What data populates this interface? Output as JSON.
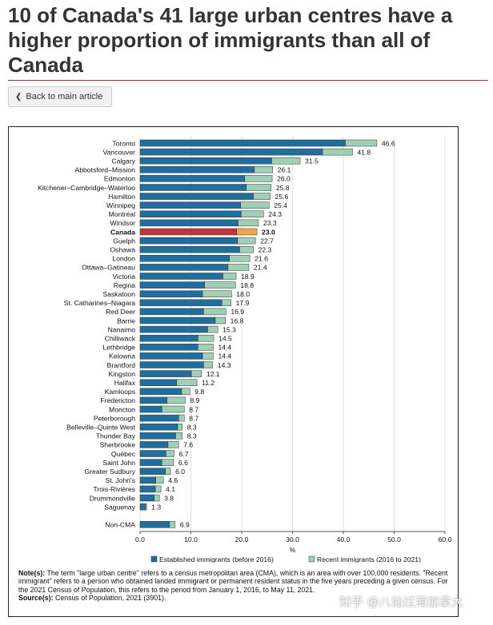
{
  "page": {
    "title": "10 of Canada's 41 large urban centres have a higher proportion of immigrants than all of Canada",
    "back_button": {
      "label": "Back to main article",
      "icon": "chevron-left-icon"
    },
    "watermark": "知乎 @八仙过海加拿大"
  },
  "notes": {
    "note_label": "Note(s):",
    "note_text": "The term \"large urban centre\" refers to a census metropolitan area (CMA), which is an area with over 100,000 residents. \"Recent immigrant\" refers to a person who obtained landed immigrant or permanent resident status in the five years preceding a given census. For the 2021 Census of Population, this refers to the period from January 1, 2016, to May 11, 2021.",
    "source_label": "Source(s):",
    "source_text": "Census of Population, 2021 (3901)."
  },
  "chart_data": {
    "type": "bar",
    "orientation": "horizontal",
    "stacked": true,
    "xlabel": "%",
    "xlim": [
      0,
      60
    ],
    "xticks": [
      "0.0",
      "10.0",
      "20.0",
      "30.0",
      "40.0",
      "50.0",
      "60.0"
    ],
    "grid": true,
    "legend_position": "bottom",
    "highlight_category": "Canada",
    "colors": {
      "established": "#1f6e9e",
      "recent": "#9fcfb4",
      "highlight_established": "#c0373b",
      "highlight_recent": "#f2a44a"
    },
    "series": [
      {
        "name": "Established immigrants (before 2016)"
      },
      {
        "name": "Recent immigrants (2016 to 2021)"
      }
    ],
    "categories": [
      "Toronto",
      "Vancouver",
      "Calgary",
      "Abbotsford–Mission",
      "Edmonton",
      "Kitchener–Cambridge–Waterloo",
      "Hamilton",
      "Winnipeg",
      "Montréal",
      "Windsor",
      "Canada",
      "Guelph",
      "Oshawa",
      "London",
      "Ottawa–Gatineau",
      "Victoria",
      "Regina",
      "Saskatoon",
      "St. Catharines–Niagara",
      "Red Deer",
      "Barrie",
      "Nanaimo",
      "Chilliwack",
      "Lethbridge",
      "Kelowna",
      "Brantford",
      "Kingston",
      "Halifax",
      "Kamloops",
      "Fredericton",
      "Moncton",
      "Peterborough",
      "Belleville–Quinte West",
      "Thunder Bay",
      "Sherbrooke",
      "Québec",
      "Saint John",
      "Greater Sudbury",
      "St. John's",
      "Trois-Rivières",
      "Drummondville",
      "Saguenay",
      "Non-CMA"
    ],
    "established": [
      40.4,
      35.9,
      25.9,
      22.5,
      20.6,
      20.9,
      22.3,
      19.8,
      19.9,
      19.3,
      19.0,
      19.2,
      19.6,
      17.6,
      17.3,
      16.3,
      12.7,
      12.3,
      16.1,
      12.5,
      14.8,
      13.3,
      11.4,
      11.4,
      12.3,
      12.5,
      10.1,
      7.2,
      8.2,
      5.3,
      4.3,
      7.6,
      7.4,
      7.0,
      5.5,
      5.1,
      4.3,
      5.0,
      3.1,
      3.0,
      2.8,
      1.1,
      5.8
    ],
    "recent": [
      6.2,
      5.9,
      5.6,
      3.6,
      5.4,
      4.9,
      3.3,
      5.6,
      4.4,
      4.0,
      4.0,
      3.5,
      2.7,
      4.0,
      4.1,
      2.6,
      6.1,
      5.7,
      1.8,
      4.4,
      2.0,
      2.0,
      3.1,
      3.0,
      2.1,
      1.8,
      2.0,
      4.0,
      1.6,
      3.6,
      4.4,
      1.1,
      0.9,
      1.3,
      2.1,
      1.6,
      2.3,
      1.0,
      1.5,
      1.1,
      1.0,
      0.2,
      1.1
    ],
    "totals": [
      46.6,
      41.8,
      31.5,
      26.1,
      26.0,
      25.8,
      25.6,
      25.4,
      24.3,
      23.3,
      23.0,
      22.7,
      22.3,
      21.6,
      21.4,
      18.9,
      18.8,
      18.0,
      17.9,
      16.9,
      16.8,
      15.3,
      14.5,
      14.4,
      14.4,
      14.3,
      12.1,
      11.2,
      9.8,
      8.9,
      8.7,
      8.7,
      8.3,
      8.3,
      7.6,
      6.7,
      6.6,
      6.0,
      4.6,
      4.1,
      3.8,
      1.3,
      6.9
    ],
    "total_labels": [
      "46.6",
      "41.8",
      "31.5",
      "26.1",
      "26.0",
      "25.8",
      "25.6",
      "25.4",
      "24.3",
      "23.3",
      "23.0",
      "22.7",
      "22.3",
      "21.6",
      "21.4",
      "18.9",
      "18.8",
      "18.0",
      "17.9",
      "16.9",
      "16.8",
      "15.3",
      "14.5",
      "14.4",
      "14.4",
      "14.3",
      "12.1",
      "11.2",
      "9.8",
      "8.9",
      "8.7",
      "8.7",
      "8.3",
      "8.3",
      "7.6",
      "6.7",
      "6.6",
      "6.0",
      "4.6",
      "4.1",
      "3.8",
      "1.3",
      "6.9"
    ]
  }
}
